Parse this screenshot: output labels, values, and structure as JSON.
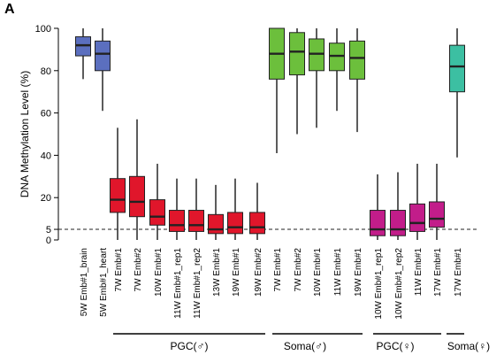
{
  "panel_label": "A",
  "chart_data": {
    "type": "box",
    "title": "",
    "xlabel": "",
    "ylabel": "DNA Methylation Level (%)",
    "ylim": [
      0,
      100
    ],
    "yticks": [
      0,
      5,
      20,
      40,
      60,
      80,
      100
    ],
    "reference_line": {
      "y": 5,
      "style": "dashed"
    },
    "groups": [
      {
        "label": "",
        "color": "#5b6fbf"
      },
      {
        "label": "PGC(♂)",
        "color": "#e0162b"
      },
      {
        "label": "Soma(♂)",
        "color": "#6cbf3c"
      },
      {
        "label": "PGC(♀)",
        "color": "#c21d8a"
      },
      {
        "label": "Soma(♀)",
        "color": "#3cbfa2"
      }
    ],
    "boxes": [
      {
        "label": "5W Emb#1_brain",
        "group": 0,
        "min": 76,
        "q1": 87,
        "median": 92,
        "q3": 96,
        "max": 100
      },
      {
        "label": "5W Emb#1_heart",
        "group": 0,
        "min": 61,
        "q1": 80,
        "median": 88,
        "q3": 94,
        "max": 100
      },
      {
        "label": "7W Emb#1",
        "group": 1,
        "min": 0,
        "q1": 13,
        "median": 19,
        "q3": 29,
        "max": 53
      },
      {
        "label": "7W Emb#2",
        "group": 1,
        "min": 0,
        "q1": 11,
        "median": 18,
        "q3": 30,
        "max": 57
      },
      {
        "label": "10W Emb#1",
        "group": 1,
        "min": 0,
        "q1": 7,
        "median": 11,
        "q3": 19,
        "max": 36
      },
      {
        "label": "11W Emb#1_rep1",
        "group": 1,
        "min": 0,
        "q1": 4,
        "median": 7,
        "q3": 14,
        "max": 29
      },
      {
        "label": "11W Emb#1_rep2",
        "group": 1,
        "min": 0,
        "q1": 4,
        "median": 7,
        "q3": 14,
        "max": 29
      },
      {
        "label": "13W Emb#1",
        "group": 1,
        "min": 0,
        "q1": 3,
        "median": 5,
        "q3": 12,
        "max": 26
      },
      {
        "label": "19W Emb#1",
        "group": 1,
        "min": 0,
        "q1": 3,
        "median": 6,
        "q3": 13,
        "max": 29
      },
      {
        "label": "19W Emb#2",
        "group": 1,
        "min": 0,
        "q1": 3,
        "median": 6,
        "q3": 13,
        "max": 27
      },
      {
        "label": "7W Emb#1",
        "group": 2,
        "min": 41,
        "q1": 76,
        "median": 88,
        "q3": 100,
        "max": 100
      },
      {
        "label": "7W Emb#2",
        "group": 2,
        "min": 50,
        "q1": 78,
        "median": 89,
        "q3": 98,
        "max": 100
      },
      {
        "label": "10W Emb#1",
        "group": 2,
        "min": 53,
        "q1": 80,
        "median": 88,
        "q3": 95,
        "max": 100
      },
      {
        "label": "11W Emb#1",
        "group": 2,
        "min": 61,
        "q1": 80,
        "median": 87,
        "q3": 93,
        "max": 100
      },
      {
        "label": "19W Emb#1",
        "group": 2,
        "min": 51,
        "q1": 76,
        "median": 86,
        "q3": 94,
        "max": 100
      },
      {
        "label": "10W Emb#1_rep1",
        "group": 3,
        "min": 0,
        "q1": 2,
        "median": 5,
        "q3": 14,
        "max": 31
      },
      {
        "label": "10W Emb#1_rep2",
        "group": 3,
        "min": 0,
        "q1": 2,
        "median": 5,
        "q3": 14,
        "max": 32
      },
      {
        "label": "11W Emb#1",
        "group": 3,
        "min": 0,
        "q1": 4,
        "median": 8,
        "q3": 17,
        "max": 36
      },
      {
        "label": "17W Emb#1",
        "group": 3,
        "min": 0,
        "q1": 6,
        "median": 10,
        "q3": 18,
        "max": 36
      },
      {
        "label": "17W Emb#1",
        "group": 4,
        "min": 39,
        "q1": 70,
        "median": 82,
        "q3": 92,
        "max": 100
      }
    ]
  }
}
